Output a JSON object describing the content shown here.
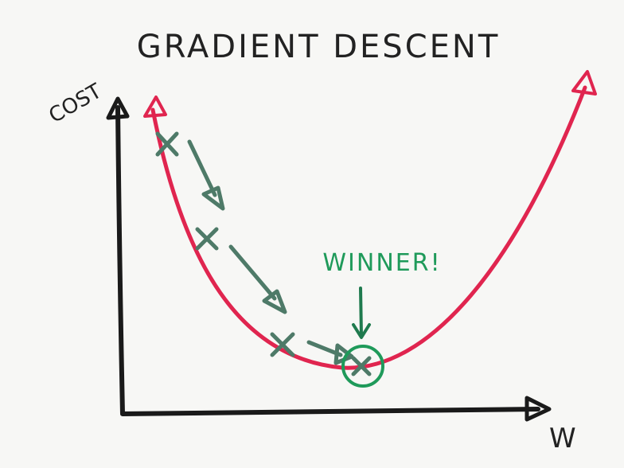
{
  "title": "GRADIENT DESCENT",
  "axes": {
    "y": "COST",
    "x": "W"
  },
  "annotation": "WINNER!"
}
